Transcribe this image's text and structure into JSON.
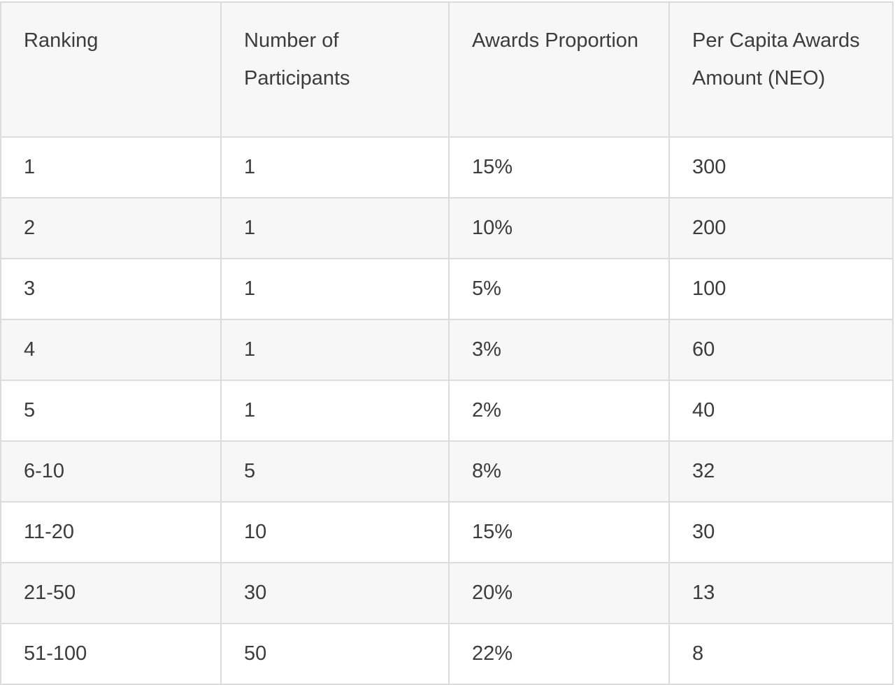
{
  "table": {
    "headers": [
      "Ranking",
      "Number of Participants",
      "Awards Proportion",
      "Per Capita Awards Amount (NEO)"
    ],
    "rows": [
      [
        "1",
        "1",
        "15%",
        "300"
      ],
      [
        "2",
        "1",
        "10%",
        "200"
      ],
      [
        "3",
        "1",
        "5%",
        "100"
      ],
      [
        "4",
        "1",
        "3%",
        "60"
      ],
      [
        "5",
        "1",
        "2%",
        "40"
      ],
      [
        "6-10",
        "5",
        "8%",
        "32"
      ],
      [
        "11-20",
        "10",
        "15%",
        "30"
      ],
      [
        "21-50",
        "30",
        "20%",
        "13"
      ],
      [
        "51-100",
        "50",
        "22%",
        "8"
      ]
    ]
  }
}
